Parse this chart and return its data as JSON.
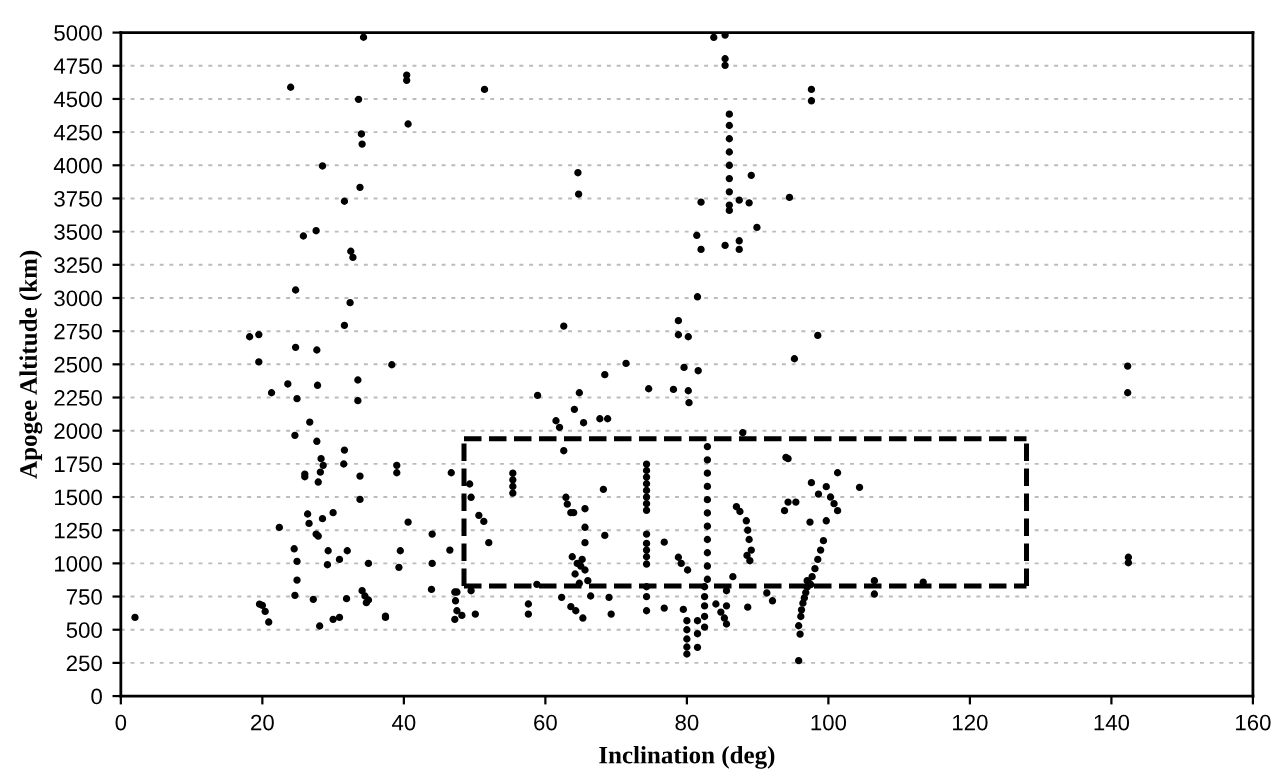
{
  "chart_data": {
    "type": "scatter",
    "xlabel": "Inclination (deg)",
    "ylabel": "Apogee Altitude (km)",
    "xlim": [
      0,
      160
    ],
    "xticks": [
      0,
      20,
      40,
      60,
      80,
      100,
      120,
      140,
      160
    ],
    "ylim": [
      0,
      5000
    ],
    "yticks": [
      0,
      250,
      500,
      750,
      1000,
      1250,
      1500,
      1750,
      2000,
      2250,
      2500,
      2750,
      3000,
      3250,
      3500,
      3750,
      4000,
      4250,
      4500,
      4750,
      5000
    ],
    "grid": "y",
    "marker": "circle",
    "series": [
      {
        "color": "#000000",
        "x": [
          2,
          34.3,
          24,
          33.6,
          40.4,
          40.4,
          40.6,
          34,
          34.1,
          28.5,
          33.8,
          31.6,
          27.6,
          25.8,
          32.5,
          32.8,
          24.7,
          32.4,
          31.6,
          18.2,
          19.5,
          24.7,
          27.7,
          19.5,
          38.3,
          33.5,
          23.6,
          27.8,
          21.3,
          24.9,
          33.5,
          26.7,
          24.6,
          27.7,
          28.3,
          31.6,
          31.5,
          28.6,
          28.2,
          26,
          26,
          33.8,
          39,
          39,
          46.7,
          27.9,
          33.8,
          26.4,
          26.6,
          30,
          28.5,
          27.6,
          27.9,
          40.6,
          22.4,
          44,
          24.5,
          29.3,
          32,
          39.5,
          46.5,
          24.9,
          30.9,
          29.2,
          35,
          44,
          39.3,
          24.9,
          34.1,
          34.5,
          35,
          34.7,
          43.9,
          24.6,
          47.2,
          27.2,
          31.9,
          19.6,
          20,
          20.4,
          20.9,
          30.9,
          30,
          37.4,
          28.1,
          47.2,
          83.8,
          85.4,
          85.4,
          85.4,
          51.4,
          97.6,
          97.6,
          86,
          86,
          86,
          86,
          86,
          86,
          86,
          86,
          86,
          64.6,
          64.7,
          89.1,
          82,
          87.4,
          88.8,
          94.5,
          89.9,
          81.4,
          85.4,
          87.4,
          82,
          87.4,
          81.5,
          62.6,
          78.8,
          78.8,
          80.2,
          95.2,
          98.5,
          71.4,
          79.6,
          81.6,
          68.4,
          74.6,
          78.1,
          80.2,
          64.8,
          58.9,
          64.1,
          65.4,
          67.7,
          68.8,
          61.5,
          62,
          62.6,
          80.3,
          87.9,
          94,
          55.4,
          55.4,
          55.4,
          55.4,
          49.3,
          49.5,
          50.6,
          51.3,
          52,
          62.9,
          63.1,
          63.6,
          64,
          65.6,
          65.6,
          65.6,
          68.2,
          68.4,
          74.3,
          74.3,
          74.3,
          74.3,
          74.3,
          74.3,
          74.3,
          74.3,
          74.3,
          74.3,
          74.3,
          74.3,
          74.3,
          74.3,
          74.3,
          74.3,
          76.8,
          82.9,
          82.9,
          82.9,
          82.9,
          82.9,
          82.9,
          82.9,
          82.9,
          82.9,
          82.9,
          82.9,
          82.5,
          82.5,
          82.5,
          82.5,
          82.5,
          80,
          80,
          80,
          80,
          80,
          81.5,
          81.5,
          81.5,
          78.8,
          79.2,
          80.1,
          87,
          87.5,
          88.4,
          88.6,
          88.8,
          89.1,
          88.9,
          88.5,
          86.5,
          84.1,
          84.8,
          85.3,
          88.6,
          91.3,
          92.1,
          37.4,
          47.5,
          47.3,
          47.5,
          48.2,
          50.1,
          57.6,
          57.6,
          58.8,
          62.3,
          63.6,
          65.3,
          64.3,
          69,
          69.3,
          76.8,
          79.5,
          66.4,
          63.8,
          64.5,
          65,
          65.6,
          64.2,
          65.2,
          64.8,
          66,
          85.6,
          85.6,
          85.6,
          49.5,
          142.3,
          142.3,
          94.3,
          97.6,
          98.6,
          95.4,
          94.3,
          93.8,
          97.4,
          99.7,
          99.7,
          100.3,
          100.8,
          101.3,
          101.3,
          104.4,
          99.3,
          98.9,
          98.5,
          98.1,
          97.7,
          97.3,
          97,
          96.8,
          96.6,
          96.4,
          96.2,
          96.1,
          95.8,
          96,
          95.8,
          97,
          97.5,
          106.5,
          106.5,
          113.4,
          142.4,
          142.4
        ],
        "values": [
          593,
          4965,
          4588,
          4497,
          4680,
          4640,
          4311,
          4236,
          4160,
          3995,
          3834,
          3729,
          3507,
          3467,
          3352,
          3306,
          3060,
          2965,
          2794,
          2708,
          2724,
          2628,
          2608,
          2518,
          2497,
          2382,
          2352,
          2342,
          2286,
          2241,
          2226,
          2065,
          1965,
          1920,
          1789,
          1854,
          1749,
          1739,
          1688,
          1673,
          1653,
          1658,
          1739,
          1683,
          1683,
          1613,
          1482,
          1372,
          1301,
          1382,
          1337,
          1221,
          1206,
          1311,
          1271,
          1221,
          1110,
          1095,
          1095,
          1095,
          1100,
          1015,
          1030,
          990,
          1000,
          1000,
          970,
          874,
          794,
          754,
          724,
          704,
          804,
          759,
          784,
          729,
          734,
          693,
          683,
          638,
          558,
          593,
          578,
          593,
          528,
          578,
          4964,
          4981,
          4803,
          4753,
          4572,
          4572,
          4486,
          4385,
          4300,
          4200,
          4100,
          4000,
          3900,
          3800,
          3700,
          3660,
          3944,
          3783,
          3924,
          3722,
          3737,
          3717,
          3758,
          3532,
          3472,
          3396,
          3431,
          3366,
          3366,
          3009,
          2788,
          2829,
          2723,
          2708,
          2542,
          2718,
          2507,
          2477,
          2452,
          2422,
          2316,
          2311,
          2301,
          2286,
          2266,
          2161,
          2060,
          2090,
          2090,
          2075,
          2025,
          1849,
          2211,
          1985,
          1799,
          1680,
          1630,
          1580,
          1530,
          1598,
          1498,
          1362,
          1316,
          1156,
          1498,
          1447,
          1382,
          1382,
          1412,
          1272,
          1156,
          1558,
          1211,
          1748,
          1700,
          1650,
          1600,
          1550,
          1500,
          1450,
          1400,
          1221,
          1150,
          1100,
          1050,
          995,
          824,
          750,
          643,
          1160,
          1880,
          1780,
          1680,
          1580,
          1480,
          1380,
          1280,
          1180,
          1080,
          980,
          880,
          824,
          750,
          680,
          600,
          520,
          568,
          500,
          430,
          370,
          317,
          568,
          470,
          367,
          1046,
          1000,
          950,
          1427,
          1391,
          1321,
          1250,
          1180,
          1100,
          1020,
          1060,
          900,
          694,
          633,
          588,
          670,
          777,
          718,
          603,
          784,
          718,
          643,
          608,
          618,
          694,
          618,
          842,
          744,
          674,
          588,
          643,
          744,
          618,
          663,
          653,
          754,
          1050,
          1000,
          980,
          950,
          920,
          1030,
          850,
          870,
          794,
          680,
          543,
          794,
          2487,
          2286,
          1789,
          1608,
          1522,
          1462,
          1462,
          1397,
          1311,
          1321,
          1578,
          1500,
          1450,
          1397,
          1683,
          1573,
          1171,
          1100,
          1030,
          960,
          900,
          850,
          820,
          780,
          740,
          700,
          650,
          600,
          530,
          467,
          267,
          870,
          840,
          870,
          769,
          859,
          1046,
          1005
        ]
      },
      {
        "type": "line",
        "color": "#000000",
        "marker": "none",
        "line_style": "dashed",
        "x": [
          48.5,
          128
        ],
        "values": [
          830,
          830
        ]
      },
      {
        "type": "line",
        "color": "#000000",
        "marker": "none",
        "line_style": "dashed",
        "x": [
          48.5,
          128
        ],
        "values": [
          1940,
          1940
        ]
      },
      {
        "type": "line",
        "color": "#000000",
        "marker": "none",
        "line_style": "dashed",
        "x": [
          48.5,
          48.5
        ],
        "values": [
          830,
          1940
        ]
      },
      {
        "type": "line",
        "color": "#000000",
        "marker": "none",
        "line_style": "dashed",
        "x": [
          128,
          128
        ],
        "values": [
          830,
          1940
        ]
      }
    ]
  }
}
